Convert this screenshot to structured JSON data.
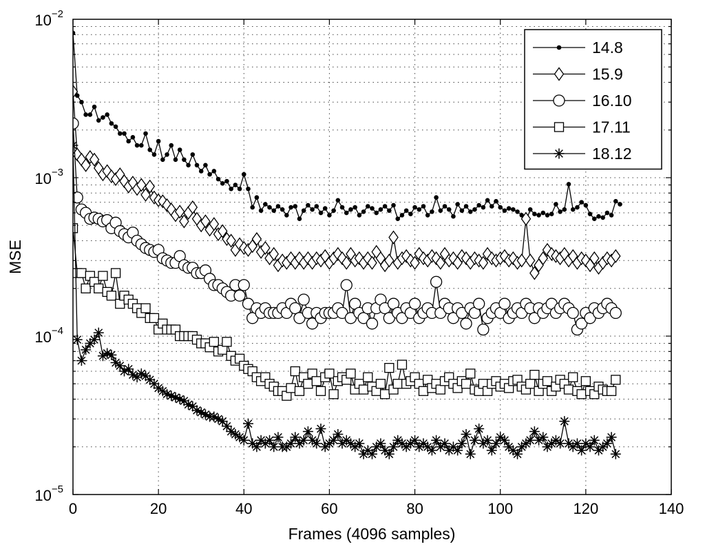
{
  "chart_data": {
    "type": "line",
    "title": "",
    "xlabel": "Frames (4096 samples)",
    "ylabel": "MSE",
    "xlim": [
      0,
      140
    ],
    "ylim": [
      1e-05,
      0.01
    ],
    "yscale": "log",
    "xticks": [
      0,
      20,
      40,
      60,
      80,
      100,
      120,
      140
    ],
    "xtick_labels": [
      "0",
      "20",
      "40",
      "60",
      "80",
      "100",
      "120",
      "140"
    ],
    "yticks": [
      {
        "value": 0.01,
        "base": "10",
        "exp": "−2"
      },
      {
        "value": 0.001,
        "base": "10",
        "exp": "−3"
      },
      {
        "value": 0.0001,
        "base": "10",
        "exp": "−4"
      },
      {
        "value": 1e-05,
        "base": "10",
        "exp": "−5"
      }
    ],
    "grid": true,
    "legend_position": "top-right",
    "x_start": 0,
    "x_step": 1,
    "series": [
      {
        "name": "14.8",
        "marker": "dot",
        "values": [
          0.0082,
          0.0033,
          0.003,
          0.0025,
          0.0025,
          0.0028,
          0.0023,
          0.0024,
          0.0025,
          0.0022,
          0.0021,
          0.0019,
          0.0019,
          0.0017,
          0.0018,
          0.0016,
          0.0016,
          0.0019,
          0.0015,
          0.0014,
          0.0017,
          0.0013,
          0.0014,
          0.0016,
          0.0013,
          0.0015,
          0.0013,
          0.0012,
          0.0014,
          0.0012,
          0.0011,
          0.0012,
          0.00105,
          0.0011,
          0.00098,
          0.00092,
          0.00095,
          0.00085,
          0.0009,
          0.00085,
          0.00105,
          0.00085,
          0.00065,
          0.00075,
          0.00062,
          0.00068,
          0.00065,
          0.00062,
          0.00066,
          0.00063,
          0.00058,
          0.00065,
          0.00066,
          0.00055,
          0.00062,
          0.00067,
          0.00063,
          0.00066,
          0.0006,
          0.00064,
          0.00058,
          0.00062,
          0.00072,
          0.00065,
          0.0006,
          0.00063,
          0.00065,
          0.00058,
          0.00061,
          0.00066,
          0.00064,
          0.0006,
          0.00063,
          0.00066,
          0.00062,
          0.00067,
          0.00055,
          0.00058,
          0.00062,
          0.00059,
          0.00065,
          0.00063,
          0.00066,
          0.00058,
          0.00061,
          0.00075,
          0.00062,
          0.00066,
          0.00063,
          0.00057,
          0.00068,
          0.00062,
          0.00066,
          0.00061,
          0.00063,
          0.00067,
          0.00065,
          0.00072,
          0.00066,
          0.00071,
          0.00065,
          0.00062,
          0.00064,
          0.00063,
          0.00061,
          0.00058,
          0.00053,
          0.00063,
          0.00059,
          0.00058,
          0.0006,
          0.00058,
          0.00059,
          0.00068,
          0.00061,
          0.00063,
          0.00091,
          0.00063,
          0.00065,
          0.0007,
          0.00067,
          0.00059,
          0.00055,
          0.00057,
          0.00056,
          0.0006,
          0.00058,
          0.00071,
          0.00068
        ]
      },
      {
        "name": "15.9",
        "marker": "diamond",
        "values": [
          0.0035,
          0.0014,
          0.0013,
          0.0012,
          0.00135,
          0.0013,
          0.00115,
          0.00105,
          0.0011,
          0.00102,
          0.00098,
          0.00105,
          0.00095,
          0.00088,
          0.00093,
          0.00085,
          0.0009,
          0.00078,
          0.00088,
          0.00075,
          0.00072,
          0.00071,
          0.00067,
          0.00063,
          0.00058,
          0.00061,
          0.00053,
          0.0006,
          0.00065,
          0.00055,
          0.0005,
          0.00053,
          0.00047,
          0.00051,
          0.00044,
          0.00046,
          0.00041,
          0.0004,
          0.00035,
          0.00038,
          0.00036,
          0.00035,
          0.00037,
          0.00041,
          0.00034,
          0.00036,
          0.00031,
          0.00033,
          0.00028,
          0.0003,
          0.00029,
          0.00031,
          0.00029,
          0.00031,
          0.00029,
          0.00031,
          0.00029,
          0.00031,
          0.0003,
          0.00032,
          0.00029,
          0.00031,
          0.00033,
          0.00031,
          0.00029,
          0.00033,
          0.0003,
          0.00031,
          0.00029,
          0.00031,
          0.00029,
          0.00034,
          0.00031,
          0.00028,
          0.0003,
          0.00042,
          0.00029,
          0.00031,
          0.00032,
          0.0003,
          0.00029,
          0.00033,
          0.00031,
          0.0003,
          0.00032,
          0.00031,
          0.00029,
          0.00033,
          0.0003,
          0.00031,
          0.00029,
          0.00032,
          0.00031,
          0.00029,
          0.00031,
          0.0003,
          0.00029,
          0.00033,
          0.00031,
          0.0003,
          0.00031,
          0.00032,
          0.0003,
          0.00031,
          0.00029,
          0.0003,
          0.00055,
          0.0003,
          0.00025,
          0.00028,
          0.00031,
          0.00035,
          0.00033,
          0.00032,
          0.00031,
          0.00033,
          0.0003,
          0.00032,
          0.00029,
          0.00031,
          0.0003,
          0.00028,
          0.00031,
          0.00027,
          0.00029,
          0.00031,
          0.0003,
          0.00032
        ]
      },
      {
        "name": "16.10",
        "marker": "circle",
        "values": [
          0.0022,
          0.00075,
          0.00063,
          0.0006,
          0.00055,
          0.00056,
          0.00055,
          0.00053,
          0.00054,
          0.00048,
          0.00052,
          0.00046,
          0.00044,
          0.00042,
          0.00045,
          0.0004,
          0.00038,
          0.00036,
          0.00035,
          0.00034,
          0.00035,
          0.00031,
          0.0003,
          0.00029,
          0.00029,
          0.00032,
          0.00028,
          0.00027,
          0.00027,
          0.00025,
          0.00025,
          0.00026,
          0.00023,
          0.00021,
          0.00021,
          0.0002,
          0.00019,
          0.00018,
          0.00021,
          0.00018,
          0.00021,
          0.00016,
          0.00013,
          0.00015,
          0.00014,
          0.00015,
          0.00014,
          0.00014,
          0.00014,
          0.00015,
          0.00014,
          0.00016,
          0.00015,
          0.00013,
          0.00017,
          0.00014,
          0.00012,
          0.00014,
          0.00013,
          0.00014,
          0.00014,
          0.00014,
          0.00015,
          0.00014,
          0.00021,
          0.00013,
          0.00016,
          0.00014,
          0.00013,
          0.00015,
          0.00012,
          0.00015,
          0.00017,
          0.00015,
          0.00013,
          0.00016,
          0.00014,
          0.00013,
          0.00015,
          0.00014,
          0.00016,
          0.00013,
          0.00014,
          0.00015,
          0.00014,
          0.00022,
          0.00014,
          0.00016,
          0.00015,
          0.00013,
          0.00015,
          0.00014,
          0.00012,
          0.00015,
          0.00014,
          0.00016,
          0.00011,
          0.00013,
          0.00014,
          0.00015,
          0.00014,
          0.00016,
          0.00013,
          0.00014,
          0.00015,
          0.00014,
          0.00016,
          0.00015,
          0.00013,
          0.00015,
          0.00014,
          0.00015,
          0.00016,
          0.00014,
          0.00015,
          0.00016,
          0.00015,
          0.00014,
          0.00011,
          0.00012,
          0.00014,
          0.00013,
          0.00015,
          0.00014,
          0.00015,
          0.00016,
          0.00015,
          0.00014
        ]
      },
      {
        "name": "17.11",
        "marker": "square",
        "values": [
          0.00048,
          0.00025,
          0.00025,
          0.0002,
          0.00024,
          0.00022,
          0.0002,
          0.00024,
          0.00019,
          0.00018,
          0.00025,
          0.00016,
          0.00018,
          0.00017,
          0.00016,
          0.00015,
          0.00014,
          0.00015,
          0.00013,
          0.00013,
          0.00011,
          0.00012,
          0.00011,
          0.00011,
          0.00011,
          0.0001,
          0.0001,
          0.0001,
          0.0001,
          9.5e-05,
          9e-05,
          9e-05,
          8.5e-05,
          9.2e-05,
          8e-05,
          8.2e-05,
          9.2e-05,
          7.5e-05,
          7e-05,
          7.2e-05,
          6.5e-05,
          6.2e-05,
          6e-05,
          5.5e-05,
          5.2e-05,
          5.5e-05,
          5e-05,
          4.8e-05,
          4.5e-05,
          4.5e-05,
          4.2e-05,
          4.7e-05,
          6e-05,
          4.5e-05,
          5.5e-05,
          5e-05,
          5.8e-05,
          5.2e-05,
          4.5e-05,
          5.5e-05,
          5.8e-05,
          4.3e-05,
          5.2e-05,
          5.5e-05,
          5.3e-05,
          5.8e-05,
          4.6e-05,
          5e-05,
          4.6e-05,
          5.5e-05,
          4.8e-05,
          4.5e-05,
          5e-05,
          4.3e-05,
          6.3e-05,
          4.6e-05,
          5e-05,
          6.6e-05,
          5e-05,
          5.2e-05,
          5.5e-05,
          5e-05,
          4.5e-05,
          5.3e-05,
          4.7e-05,
          5e-05,
          4.6e-05,
          5.2e-05,
          5.5e-05,
          5e-05,
          4.7e-05,
          5.2e-05,
          5e-05,
          5.8e-05,
          4.6e-05,
          4.5e-05,
          5e-05,
          4.5e-05,
          5e-05,
          5.2e-05,
          4.8e-05,
          5e-05,
          4.7e-05,
          5.2e-05,
          5.3e-05,
          4.8e-05,
          4.6e-05,
          5e-05,
          5.7e-05,
          4.5e-05,
          5e-05,
          5.2e-05,
          4.5e-05,
          4.8e-05,
          5.3e-05,
          5e-05,
          4.6e-05,
          5.5e-05,
          4.5e-05,
          4.3e-05,
          5.2e-05,
          4.5e-05,
          4.3e-05,
          4.8e-05,
          4.6e-05,
          4.5e-05,
          4.5e-05,
          5.3e-05
        ]
      },
      {
        "name": "18.12",
        "marker": "star",
        "values": [
          0.0016,
          9.5e-05,
          7e-05,
          8.2e-05,
          9e-05,
          9.5e-05,
          0.000105,
          7.5e-05,
          7.8e-05,
          7.6e-05,
          6.8e-05,
          6.5e-05,
          6e-05,
          6.2e-05,
          5.7e-05,
          5.5e-05,
          5.8e-05,
          5.6e-05,
          5.3e-05,
          5e-05,
          4.7e-05,
          4.5e-05,
          4.3e-05,
          4.2e-05,
          4.1e-05,
          4e-05,
          3.9e-05,
          3.7e-05,
          3.6e-05,
          3.4e-05,
          3.3e-05,
          3.2e-05,
          3.1e-05,
          3.1e-05,
          3e-05,
          2.9e-05,
          2.7e-05,
          2.5e-05,
          2.4e-05,
          2.3e-05,
          2.2e-05,
          2.8e-05,
          2.1e-05,
          2e-05,
          2.2e-05,
          2.1e-05,
          2.2e-05,
          2e-05,
          2.3e-05,
          2e-05,
          2e-05,
          2.1e-05,
          2.3e-05,
          2.1e-05,
          2.2e-05,
          2.5e-05,
          2.2e-05,
          2.1e-05,
          2.6e-05,
          2e-05,
          2.1e-05,
          2.2e-05,
          2.4e-05,
          2.1e-05,
          2.2e-05,
          2.1e-05,
          2e-05,
          2.1e-05,
          1.8e-05,
          1.9e-05,
          1.8e-05,
          2e-05,
          2.1e-05,
          1.9e-05,
          1.8e-05,
          2e-05,
          2.2e-05,
          2.1e-05,
          2e-05,
          2.1e-05,
          2.2e-05,
          2e-05,
          2.1e-05,
          2e-05,
          1.9e-05,
          2.2e-05,
          2e-05,
          2.1e-05,
          1.9e-05,
          2e-05,
          1.9e-05,
          2.1e-05,
          2.4e-05,
          1.8e-05,
          2.2e-05,
          2.6e-05,
          2.1e-05,
          2.2e-05,
          1.9e-05,
          2.1e-05,
          2.3e-05,
          2.2e-05,
          2e-05,
          1.9e-05,
          1.8e-05,
          2e-05,
          2.1e-05,
          2.2e-05,
          2.5e-05,
          2.2e-05,
          2.3e-05,
          2e-05,
          2.1e-05,
          2.2e-05,
          2.1e-05,
          2.9e-05,
          2.1e-05,
          2e-05,
          2.1e-05,
          1.9e-05,
          2.1e-05,
          2e-05,
          2.2e-05,
          1.9e-05,
          2e-05,
          2.1e-05,
          2.3e-05,
          1.8e-05
        ]
      }
    ]
  }
}
